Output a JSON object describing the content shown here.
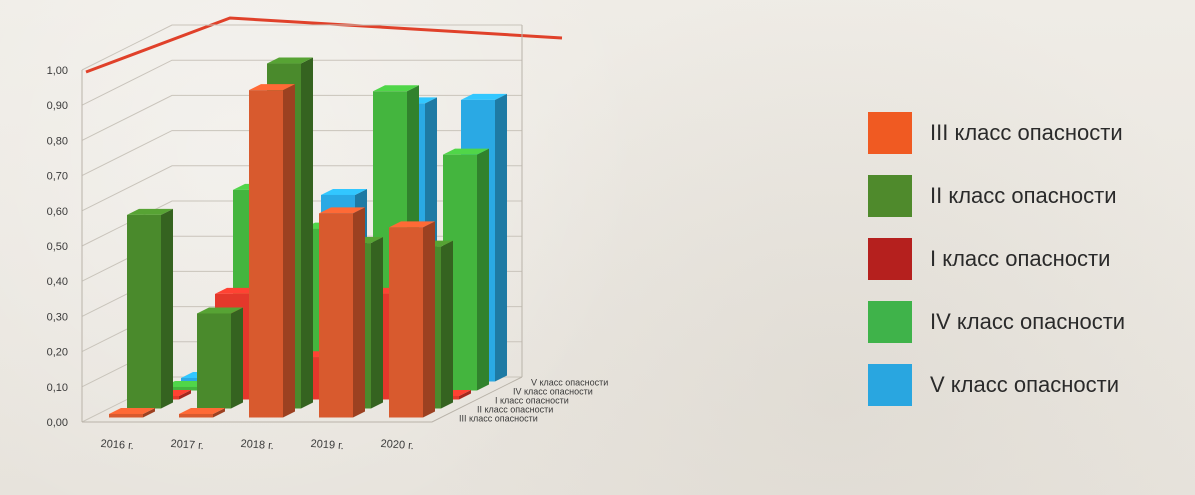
{
  "chart_data": {
    "type": "bar",
    "subtype": "3d-clustered",
    "categories": [
      "2016 г.",
      "2017 г.",
      "2018 г.",
      "2019 г.",
      "2020 г."
    ],
    "ylim": [
      0,
      1.0
    ],
    "yticks": [
      "0,00",
      "0,10",
      "0,20",
      "0,30",
      "0,40",
      "0,50",
      "0,60",
      "0,70",
      "0,80",
      "0,90",
      "1,00"
    ],
    "grid": true,
    "legend_position": "right",
    "series": [
      {
        "name": "III класс опасности",
        "color": "#d85a2e",
        "values": [
          0.01,
          0.01,
          0.93,
          0.58,
          0.54
        ]
      },
      {
        "name": "II класс опасности",
        "color": "#4a8a2c",
        "values": [
          0.55,
          0.27,
          0.98,
          0.47,
          0.46
        ]
      },
      {
        "name": "I класс опасности",
        "color": "#e4382b",
        "values": [
          0.01,
          0.3,
          0.12,
          0.3,
          0.01
        ]
      },
      {
        "name": "IV класс опасности",
        "color": "#44b53e",
        "values": [
          0.01,
          0.57,
          0.46,
          0.85,
          0.67
        ]
      },
      {
        "name": "V класс опасности",
        "color": "#2aa9e4",
        "values": [
          0.01,
          0.58,
          0.53,
          0.79,
          0.8
        ]
      }
    ],
    "depth_axis_labels": [
      "III класс опасности",
      "II класс опасности",
      "I класс опасности",
      "IV класс опасности",
      "V класс опасности"
    ]
  },
  "legend": [
    {
      "label": "III класс опасности",
      "color": "#f05a22"
    },
    {
      "label": "II класс опасности",
      "color": "#4f8a2c"
    },
    {
      "label": "I класс опасности",
      "color": "#b5201e"
    },
    {
      "label": "IV класс опасности",
      "color": "#3fb34a"
    },
    {
      "label": "V класс опасности",
      "color": "#29a6e0"
    }
  ],
  "colors": {
    "accent_line": "#e0412a",
    "gridline": "#c9c4bb",
    "text": "#333333"
  }
}
